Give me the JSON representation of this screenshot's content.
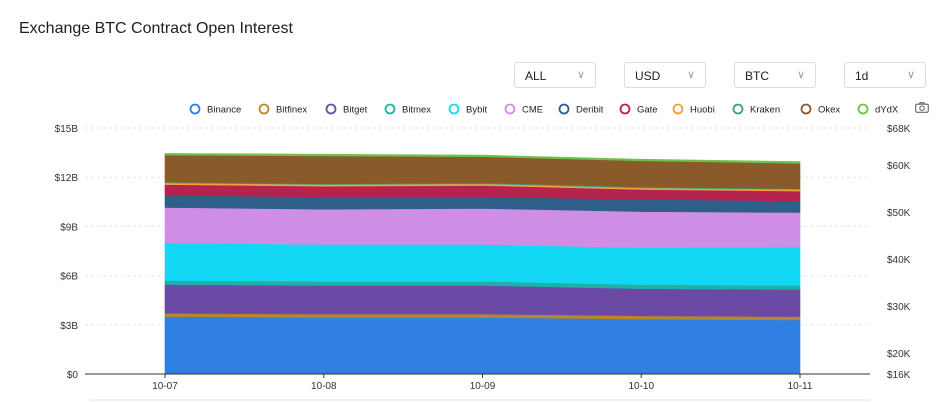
{
  "title": "Exchange BTC Contract Open Interest",
  "filters": [
    {
      "name": "coin-select",
      "value": "ALL"
    },
    {
      "name": "currency-select",
      "value": "USD"
    },
    {
      "name": "asset-select",
      "value": "BTC"
    },
    {
      "name": "interval-select",
      "value": "1d"
    }
  ],
  "toolbar": {
    "camera_icon": "camera-icon"
  },
  "chart_data": {
    "type": "area",
    "stacked": true,
    "title": "",
    "categories": [
      "10-07",
      "10-08",
      "10-09",
      "10-10",
      "10-11"
    ],
    "ylim": [
      0,
      15
    ],
    "y_ticks": [
      "$0",
      "$3B",
      "$6B",
      "$9B",
      "$12B",
      "$15B"
    ],
    "y2_ticks": [
      "$16K",
      "$20K",
      "$30K",
      "$40K",
      "$50K",
      "$60K",
      "$68K"
    ],
    "legend_position": "top",
    "grid": true,
    "series": [
      {
        "name": "Binance",
        "color": "#2f80e2",
        "values": [
          3.5,
          3.45,
          3.45,
          3.35,
          3.3
        ]
      },
      {
        "name": "Bitfinex",
        "color": "#b8862b",
        "values": [
          0.2,
          0.2,
          0.2,
          0.2,
          0.2
        ]
      },
      {
        "name": "Bitget",
        "color": "#6a4aa5",
        "values": [
          1.75,
          1.75,
          1.75,
          1.65,
          1.65
        ]
      },
      {
        "name": "Bitmex",
        "color": "#1fb1a5",
        "values": [
          0.25,
          0.25,
          0.25,
          0.25,
          0.25
        ]
      },
      {
        "name": "Bybit",
        "color": "#13d8f5",
        "values": [
          2.3,
          2.25,
          2.25,
          2.25,
          2.35
        ]
      },
      {
        "name": "CME",
        "color": "#cf8ee6",
        "values": [
          2.15,
          2.15,
          2.2,
          2.2,
          2.1
        ]
      },
      {
        "name": "Deribit",
        "color": "#2e5f88",
        "values": [
          0.75,
          0.75,
          0.7,
          0.75,
          0.7
        ]
      },
      {
        "name": "Gate",
        "color": "#b5234f",
        "values": [
          0.65,
          0.65,
          0.7,
          0.6,
          0.6
        ]
      },
      {
        "name": "Huobi",
        "color": "#f5a03a",
        "values": [
          0.1,
          0.1,
          0.1,
          0.1,
          0.1
        ]
      },
      {
        "name": "Kraken",
        "color": "#3aa37a",
        "values": [
          0.05,
          0.05,
          0.05,
          0.05,
          0.05
        ]
      },
      {
        "name": "Okex",
        "color": "#8b5a2b",
        "values": [
          1.65,
          1.7,
          1.6,
          1.6,
          1.55
        ]
      },
      {
        "name": "dYdX",
        "color": "#6cc24a",
        "values": [
          0.1,
          0.1,
          0.1,
          0.1,
          0.1
        ]
      }
    ]
  }
}
